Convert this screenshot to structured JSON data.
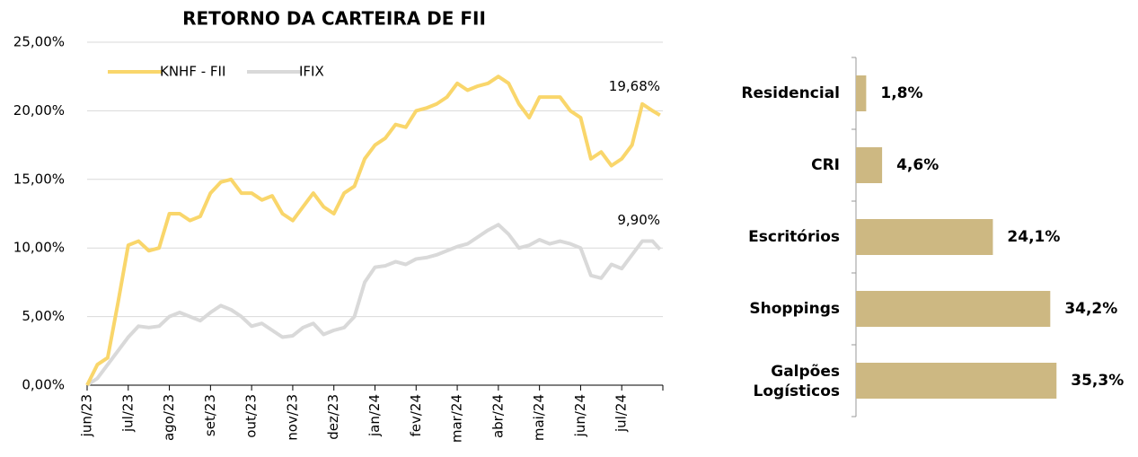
{
  "chart_data": [
    {
      "type": "line",
      "title": "RETORNO DA CARTEIRA DE FII",
      "x": [
        0,
        0.25,
        0.5,
        0.75,
        1,
        1.25,
        1.5,
        1.75,
        2,
        2.25,
        2.5,
        2.75,
        3,
        3.25,
        3.5,
        3.75,
        4,
        4.25,
        4.5,
        4.75,
        5,
        5.25,
        5.5,
        5.75,
        6,
        6.25,
        6.5,
        6.75,
        7,
        7.25,
        7.5,
        7.75,
        8,
        8.25,
        8.5,
        8.75,
        9,
        9.25,
        9.5,
        9.75,
        10,
        10.25,
        10.5,
        10.75,
        11,
        11.25,
        11.5,
        11.75,
        12,
        12.25,
        12.5,
        12.75,
        13,
        13.25,
        13.5,
        13.75,
        13.93
      ],
      "series": [
        {
          "name": "KNHF - FII",
          "color": "#f9d66b",
          "end_label": "19,68%",
          "values": [
            0,
            1.5,
            2,
            6,
            10.2,
            10.5,
            9.8,
            10,
            12.5,
            12.5,
            12,
            12.3,
            14,
            14.8,
            15,
            14,
            14,
            13.5,
            13.8,
            12.5,
            12,
            13,
            14,
            13,
            12.5,
            14,
            14.5,
            16.5,
            17.5,
            18,
            19,
            18.8,
            20,
            20.2,
            20.5,
            21,
            22,
            21.5,
            21.8,
            22,
            22.5,
            22,
            20.5,
            19.5,
            21,
            21,
            21,
            20,
            19.5,
            16.5,
            17,
            16,
            16.5,
            17.5,
            20.5,
            20,
            19.68
          ]
        },
        {
          "name": "IFIX",
          "color": "#d9d9d9",
          "end_label": "9,90%",
          "values": [
            0,
            0.5,
            1.5,
            2.5,
            3.5,
            4.3,
            4.2,
            4.3,
            5,
            5.3,
            5,
            4.7,
            5.3,
            5.8,
            5.5,
            5,
            4.3,
            4.5,
            4,
            3.5,
            3.6,
            4.2,
            4.5,
            3.7,
            4,
            4.2,
            5,
            7.5,
            8.6,
            8.7,
            9,
            8.8,
            9.2,
            9.3,
            9.5,
            9.8,
            10.1,
            10.3,
            10.8,
            11.3,
            11.7,
            11,
            10,
            10.2,
            10.6,
            10.3,
            10.5,
            10.3,
            10,
            8,
            7.8,
            8.8,
            8.5,
            9.5,
            10.5,
            10.5,
            9.9
          ]
        }
      ],
      "xlim": [
        0,
        14
      ],
      "xticks": [
        {
          "value": 0,
          "label": "jun/23"
        },
        {
          "value": 1,
          "label": "jul/23"
        },
        {
          "value": 2,
          "label": "ago/23"
        },
        {
          "value": 3,
          "label": "set/23"
        },
        {
          "value": 4,
          "label": "out/23"
        },
        {
          "value": 5,
          "label": "nov/23"
        },
        {
          "value": 6,
          "label": "dez/23"
        },
        {
          "value": 7,
          "label": "jan/24"
        },
        {
          "value": 8,
          "label": "fev/24"
        },
        {
          "value": 9,
          "label": "mar/24"
        },
        {
          "value": 10,
          "label": "abr/24"
        },
        {
          "value": 11,
          "label": "mai/24"
        },
        {
          "value": 12,
          "label": "jun/24"
        },
        {
          "value": 13,
          "label": "jul/24"
        }
      ],
      "ylim": [
        0,
        25
      ],
      "yticks": [
        {
          "value": 0,
          "label": "0,00%"
        },
        {
          "value": 5,
          "label": "5,00%"
        },
        {
          "value": 10,
          "label": "10,00%"
        },
        {
          "value": 15,
          "label": "15,00%"
        },
        {
          "value": 20,
          "label": "20,00%"
        },
        {
          "value": 25,
          "label": "25,00%"
        }
      ],
      "grid": true,
      "legend": "top-left"
    },
    {
      "type": "hbar",
      "categories": [
        "Residencial",
        "CRI",
        "Escritórios",
        "Shoppings",
        "Galpões Logísticos"
      ],
      "values": [
        1.8,
        4.6,
        24.1,
        34.2,
        35.3
      ],
      "value_labels": [
        "1,8%",
        "4,6%",
        "24,1%",
        "34,2%",
        "35,3%"
      ],
      "color": "#cdb882",
      "xlim": [
        0,
        40
      ]
    }
  ]
}
